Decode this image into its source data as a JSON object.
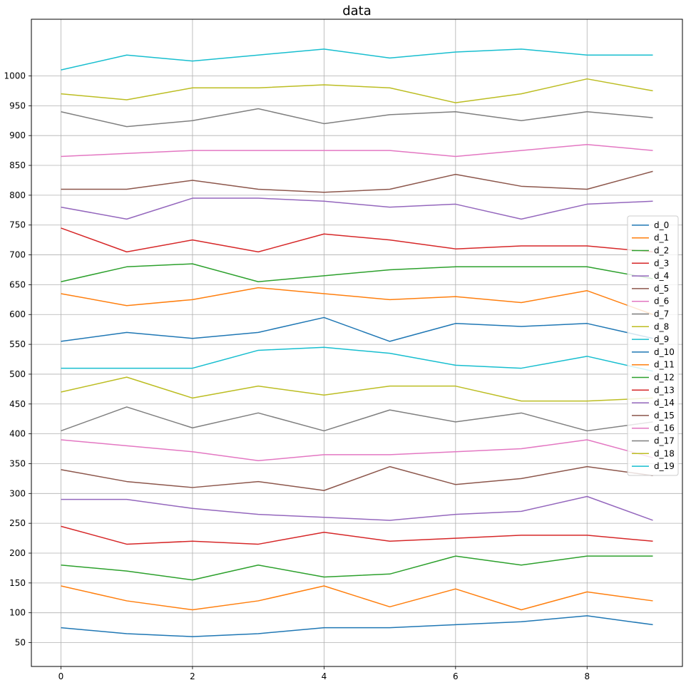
{
  "chart_data": {
    "type": "line",
    "title": "data",
    "xlabel": "",
    "ylabel": "",
    "x": [
      0,
      1,
      2,
      3,
      4,
      5,
      6,
      7,
      8,
      9
    ],
    "xlim": [
      -0.45,
      9.45
    ],
    "ylim": [
      10,
      1095
    ],
    "xticks": [
      0,
      2,
      4,
      6,
      8
    ],
    "yticks": [
      50,
      100,
      150,
      200,
      250,
      300,
      350,
      400,
      450,
      500,
      550,
      600,
      650,
      700,
      750,
      800,
      850,
      900,
      950,
      1000
    ],
    "grid": true,
    "legend_position": "center-right",
    "series": [
      {
        "name": "d_0",
        "color": "#1f77b4",
        "values": [
          75,
          65,
          60,
          65,
          75,
          75,
          80,
          85,
          95,
          80
        ]
      },
      {
        "name": "d_1",
        "color": "#ff7f0e",
        "values": [
          145,
          120,
          105,
          120,
          145,
          110,
          140,
          105,
          135,
          120
        ]
      },
      {
        "name": "d_2",
        "color": "#2ca02c",
        "values": [
          180,
          170,
          155,
          180,
          160,
          165,
          195,
          180,
          195,
          195
        ]
      },
      {
        "name": "d_3",
        "color": "#d62728",
        "values": [
          245,
          215,
          220,
          215,
          235,
          220,
          225,
          230,
          230,
          220
        ]
      },
      {
        "name": "d_4",
        "color": "#9467bd",
        "values": [
          290,
          290,
          275,
          265,
          260,
          255,
          265,
          270,
          295,
          255
        ]
      },
      {
        "name": "d_5",
        "color": "#8c564b",
        "values": [
          340,
          320,
          310,
          320,
          305,
          345,
          315,
          325,
          345,
          330
        ]
      },
      {
        "name": "d_6",
        "color": "#e377c2",
        "values": [
          390,
          380,
          370,
          355,
          365,
          365,
          370,
          375,
          390,
          360
        ]
      },
      {
        "name": "d_7",
        "color": "#7f7f7f",
        "values": [
          405,
          445,
          410,
          435,
          405,
          440,
          420,
          435,
          405,
          420
        ]
      },
      {
        "name": "d_8",
        "color": "#bcbd22",
        "values": [
          470,
          495,
          460,
          480,
          465,
          480,
          480,
          455,
          455,
          460
        ]
      },
      {
        "name": "d_9",
        "color": "#17becf",
        "values": [
          510,
          510,
          510,
          540,
          545,
          535,
          515,
          510,
          530,
          505
        ]
      },
      {
        "name": "d_10",
        "color": "#1f77b4",
        "values": [
          555,
          570,
          560,
          570,
          595,
          555,
          585,
          580,
          585,
          560
        ]
      },
      {
        "name": "d_11",
        "color": "#ff7f0e",
        "values": [
          635,
          615,
          625,
          645,
          635,
          625,
          630,
          620,
          640,
          600
        ]
      },
      {
        "name": "d_12",
        "color": "#2ca02c",
        "values": [
          655,
          680,
          685,
          655,
          665,
          675,
          680,
          680,
          680,
          660
        ]
      },
      {
        "name": "d_13",
        "color": "#d62728",
        "values": [
          745,
          705,
          725,
          705,
          735,
          725,
          710,
          715,
          715,
          705
        ]
      },
      {
        "name": "d_14",
        "color": "#9467bd",
        "values": [
          780,
          760,
          795,
          795,
          790,
          780,
          785,
          760,
          785,
          790
        ]
      },
      {
        "name": "d_15",
        "color": "#8c564b",
        "values": [
          810,
          810,
          825,
          810,
          805,
          810,
          835,
          815,
          810,
          840
        ]
      },
      {
        "name": "d_16",
        "color": "#e377c2",
        "values": [
          865,
          870,
          875,
          875,
          875,
          875,
          865,
          875,
          885,
          875
        ]
      },
      {
        "name": "d_17",
        "color": "#7f7f7f",
        "values": [
          940,
          915,
          925,
          945,
          920,
          935,
          940,
          925,
          940,
          930
        ]
      },
      {
        "name": "d_18",
        "color": "#bcbd22",
        "values": [
          970,
          960,
          980,
          980,
          985,
          980,
          955,
          970,
          995,
          975
        ]
      },
      {
        "name": "d_19",
        "color": "#17becf",
        "values": [
          1010,
          1035,
          1025,
          1035,
          1045,
          1030,
          1040,
          1045,
          1035,
          1035
        ]
      }
    ]
  }
}
